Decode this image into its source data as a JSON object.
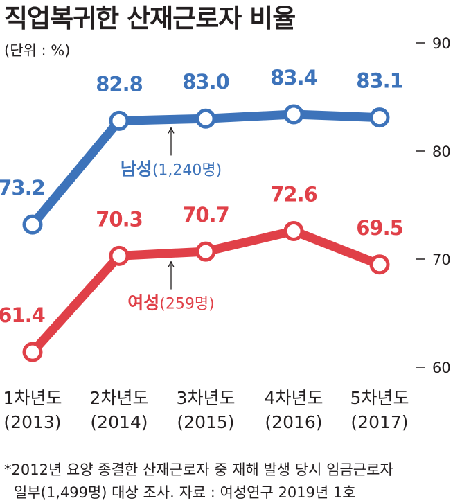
{
  "chart_data": {
    "type": "line",
    "title": "직업복귀한 산재근로자 비율",
    "unit_label": "(단위 : %)",
    "categories": [
      [
        "1차년도",
        "(2013)"
      ],
      [
        "2차년도",
        "(2014)"
      ],
      [
        "3차년도",
        "(2015)"
      ],
      [
        "4차년도",
        "(2016)"
      ],
      [
        "5차년도",
        "(2017)"
      ]
    ],
    "ylim": [
      60,
      90
    ],
    "yticks": [
      90,
      80,
      70,
      60
    ],
    "grid": false,
    "series": [
      {
        "name": "남성",
        "note": "(1,240명)",
        "color": "#3d73ba",
        "values": [
          73.2,
          82.8,
          83.0,
          83.4,
          83.1
        ],
        "labels": [
          "73.2",
          "82.8",
          "83.0",
          "83.4",
          "83.1"
        ]
      },
      {
        "name": "여성",
        "note": "(259명)",
        "color": "#e04048",
        "values": [
          61.4,
          70.3,
          70.7,
          72.6,
          69.5
        ],
        "labels": [
          "61.4",
          "70.3",
          "70.7",
          "72.6",
          "69.5"
        ]
      }
    ],
    "footnote": [
      "*2012년 요양 종결한 산재근로자 중 재해 발생 당시 임금근로자",
      "일부(1,499명) 대상 조사. 자료 : 여성연구 2019년 1호"
    ]
  }
}
